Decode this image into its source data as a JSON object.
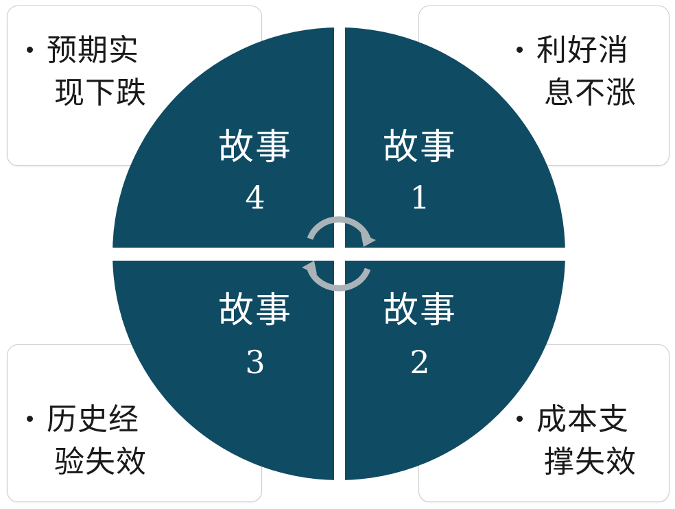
{
  "quadrants": [
    {
      "title": "故事",
      "number": "1"
    },
    {
      "title": "故事",
      "number": "2"
    },
    {
      "title": "故事",
      "number": "3"
    },
    {
      "title": "故事",
      "number": "4"
    }
  ],
  "boxes": {
    "top_left": {
      "line1": "预期实",
      "line2": "现下跌"
    },
    "top_right": {
      "line1": "利好消",
      "line2": "息不涨"
    },
    "bottom_left": {
      "line1": "历史经",
      "line2": "验失效"
    },
    "bottom_right": {
      "line1": "成本支",
      "line2": "撑失效"
    }
  },
  "colors": {
    "circle_fill": "#0f4b63",
    "arrow": "#a9b3b8",
    "box_border": "#c9ccd0"
  },
  "icons": [
    "cycle-arrows-icon",
    "bullet-icon"
  ]
}
